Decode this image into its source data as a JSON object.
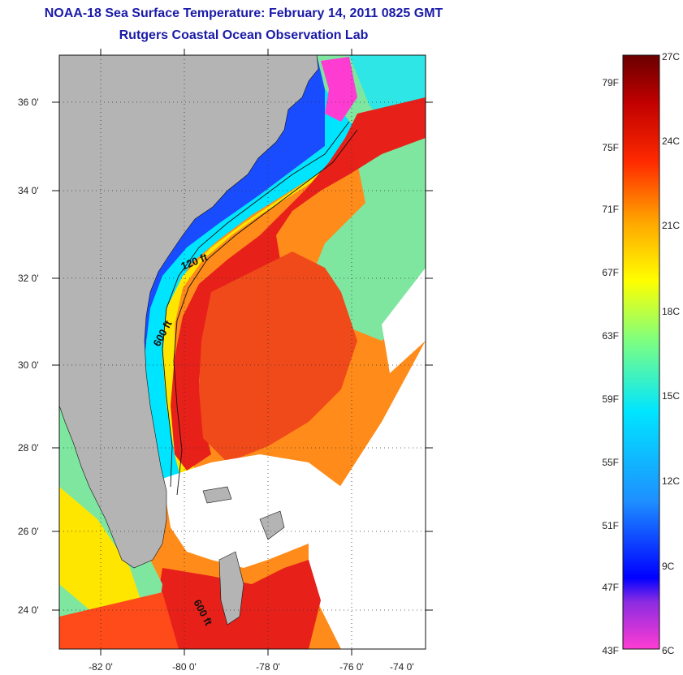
{
  "header": {
    "title": "NOAA-18 Sea Surface Temperature:  February 14, 2011 0825 GMT",
    "subtitle": "Rutgers Coastal Ocean Observation Lab"
  },
  "map": {
    "lat_labels": [
      "36 0'",
      "34 0'",
      "32 0'",
      "30 0'",
      "28 0'",
      "26 0'",
      "24 0'"
    ],
    "lon_labels": [
      "-82 0'",
      "-80 0'",
      "-78 0'",
      "-76 0'",
      "-74 0'"
    ],
    "contours": {
      "label_120": "120 ft",
      "label_600_north": "600 ft",
      "label_600_south": "600 ft"
    },
    "colors": {
      "land": "#b4b4b4",
      "gulf_stream": "#e8201a",
      "coastal_cold": "#1a3cff",
      "clouds": "#ffffff"
    }
  },
  "colorbar": {
    "fahrenheit": [
      "79F",
      "75F",
      "71F",
      "67F",
      "63F",
      "59F",
      "55F",
      "51F",
      "47F",
      "43F"
    ],
    "celsius": [
      "27C",
      "24C",
      "21C",
      "18C",
      "15C",
      "12C",
      "9C",
      "6C"
    ],
    "gradient_stops": [
      "#ff3cd2",
      "#8a2be2",
      "#0000ff",
      "#1e90ff",
      "#00e5ff",
      "#7fff7f",
      "#ffff00",
      "#ffa500",
      "#ff2a00",
      "#c00000",
      "#6a0000"
    ]
  }
}
